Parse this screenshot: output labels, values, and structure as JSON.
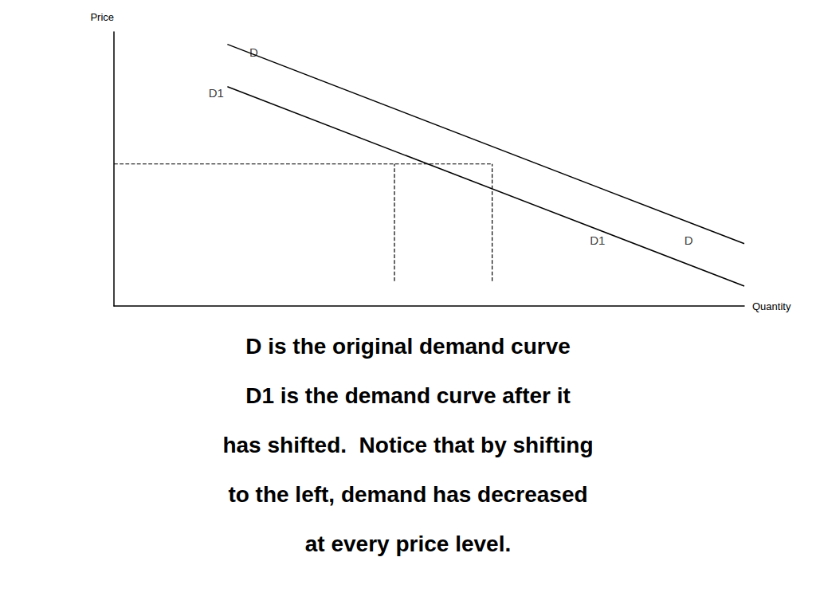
{
  "chart_data": {
    "type": "line",
    "x": [
      1.8,
      10.0
    ],
    "series": [
      {
        "name": "D",
        "color": "#000000",
        "values": [
          9.5,
          1.5
        ]
      },
      {
        "name": "D1",
        "color": "#000000",
        "values": [
          7.8,
          -0.2
        ]
      }
    ],
    "xlim": [
      0,
      10
    ],
    "ylim": [
      -1,
      10
    ],
    "x_label": "Quantity",
    "y_label": "Price",
    "grid": false,
    "tick_labels": false,
    "dashed_lines": [
      {
        "x": [
          0,
          6.0
        ],
        "y": [
          4.7,
          4.7
        ],
        "color": "#000000",
        "line_style": "dashed"
      },
      {
        "x": [
          4.45,
          4.45
        ],
        "y": [
          0,
          4.7
        ],
        "color": "#000000",
        "line_style": "dashed"
      },
      {
        "x": [
          6.0,
          6.0
        ],
        "y": [
          0,
          4.7
        ],
        "color": "#000000",
        "line_style": "dashed"
      }
    ],
    "annotations": [
      {
        "text": "D",
        "x": 2.15,
        "y": 9.2
      },
      {
        "text": "D1",
        "x": 1.5,
        "y": 7.55
      },
      {
        "text": "D",
        "x": 9.05,
        "y": 1.65
      },
      {
        "text": "D1",
        "x": 7.55,
        "y": 1.65
      }
    ],
    "caption": [
      "D is the original demand curve",
      "D1 is the demand curve after it",
      "has shifted.  Notice that by shifting",
      "to the left, demand has decreased",
      "at every price level."
    ]
  }
}
